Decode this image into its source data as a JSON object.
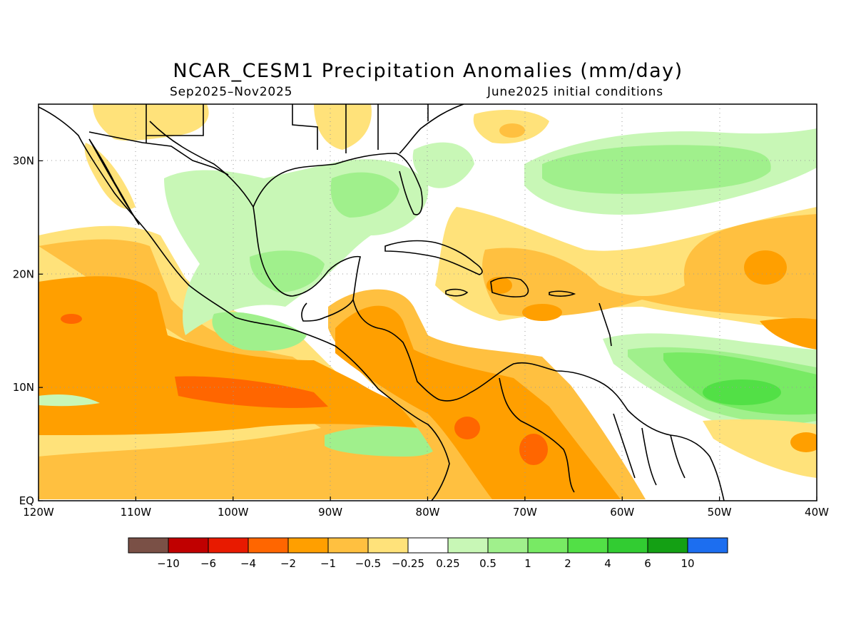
{
  "map": {
    "title": "NCAR_CESM1 Precipitation Anomalies (mm/day)",
    "subtitle_left": "Sep2025–Nov2025",
    "subtitle_right": "June2025 initial conditions",
    "lon_ticks": [
      {
        "lon": -120,
        "label": "120W"
      },
      {
        "lon": -110,
        "label": "110W"
      },
      {
        "lon": -100,
        "label": "100W"
      },
      {
        "lon": -90,
        "label": "90W"
      },
      {
        "lon": -80,
        "label": "80W"
      },
      {
        "lon": -70,
        "label": "70W"
      },
      {
        "lon": -60,
        "label": "60W"
      },
      {
        "lon": -50,
        "label": "50W"
      },
      {
        "lon": -40,
        "label": "40W"
      }
    ],
    "lat_ticks": [
      {
        "lat": 0,
        "label": "EQ"
      },
      {
        "lat": 10,
        "label": "10N"
      },
      {
        "lat": 20,
        "label": "20N"
      },
      {
        "lat": 30,
        "label": "30N"
      }
    ],
    "extent": {
      "lon_min": -120,
      "lon_max": -40,
      "lat_min": 0,
      "lat_max": 35
    },
    "grid": "dotted",
    "colorbar": {
      "colors": [
        "#7a5046",
        "#c00000",
        "#e81a00",
        "#ff6600",
        "#ff9f00",
        "#ffc040",
        "#ffe27a",
        "#ffffff",
        "#c8f7b6",
        "#a0f08c",
        "#78ea64",
        "#52e046",
        "#32cc32",
        "#14a014",
        "#1c6ef0"
      ],
      "labels": [
        "−10",
        "−6",
        "−4",
        "−2",
        "−1",
        "−0.5",
        "−0.25",
        "0.25",
        "0.5",
        "1",
        "2",
        "4",
        "6",
        "10"
      ]
    }
  }
}
